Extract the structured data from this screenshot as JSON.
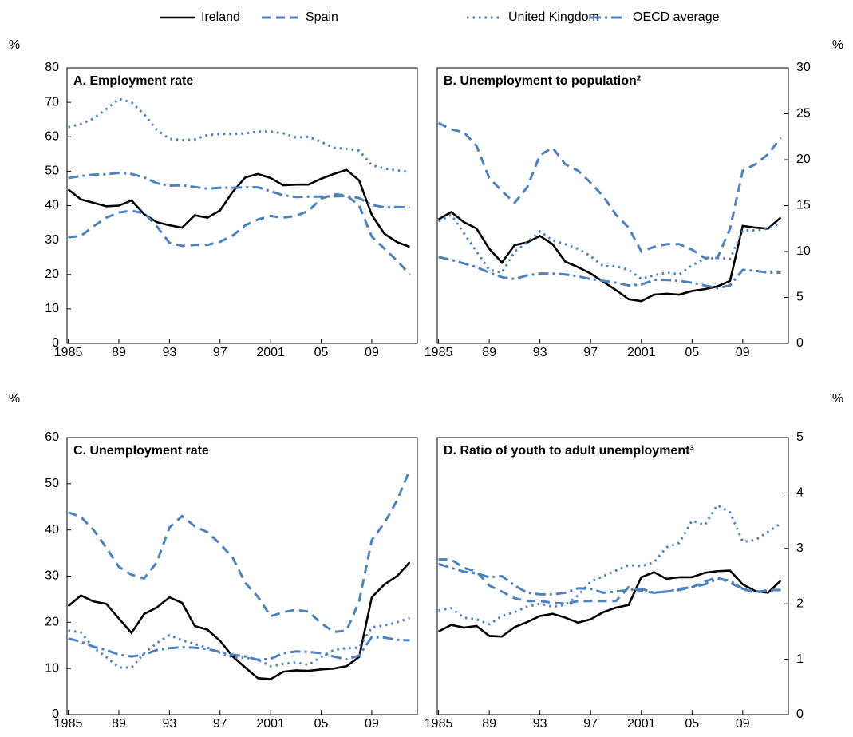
{
  "x": [
    1985,
    1986,
    1987,
    1988,
    1989,
    1990,
    1991,
    1992,
    1993,
    1994,
    1995,
    1996,
    1997,
    1998,
    1999,
    2000,
    2001,
    2002,
    2003,
    2004,
    2005,
    2006,
    2007,
    2008,
    2009,
    2010,
    2011,
    2012
  ],
  "xlim": [
    1984.9,
    2012.6
  ],
  "xticks": [
    1985,
    {
      "value": 1989,
      "label": "89"
    },
    {
      "value": 1993,
      "label": "93"
    },
    {
      "value": 1997,
      "label": "97"
    },
    2001,
    {
      "value": 2005,
      "label": "05"
    },
    {
      "value": 2009,
      "label": "09"
    }
  ],
  "legend": [
    {
      "name": "Ireland",
      "color": "#000000",
      "dash": "solid"
    },
    {
      "name": "Spain",
      "color": "#4f81bd",
      "dash": "dashed"
    },
    {
      "name": "United Kingdom",
      "color": "#4f81bd",
      "dash": "dotted"
    },
    {
      "name": "OECD average",
      "color": "#4f81bd",
      "dash": "dashdot"
    }
  ],
  "chart_data": [
    {
      "type": "line",
      "title": "A. Employment rate",
      "y_unit": "%",
      "axis_side": "left",
      "ylim": [
        0,
        80
      ],
      "yticks": [
        0,
        10,
        20,
        30,
        40,
        50,
        60,
        70,
        80
      ],
      "series": [
        {
          "values": [
            44.7,
            41.8,
            40.8,
            39.8,
            40,
            41.5,
            37.5,
            35.2,
            34.3,
            33.6,
            37.2,
            36.5,
            38.6,
            44,
            48.2,
            49.2,
            48,
            45.9,
            46.1,
            46.1,
            47.8,
            49.2,
            50.4,
            47.3,
            37.3,
            31.8,
            29.4,
            28
          ]
        },
        {
          "values": [
            30.8,
            31.2,
            34,
            36.5,
            38,
            38.5,
            37.8,
            34,
            29.2,
            28.3,
            28.6,
            28.6,
            29.5,
            31.3,
            34.3,
            36,
            37,
            36.5,
            37,
            38.5,
            42,
            43.3,
            43,
            40,
            31,
            27.5,
            24,
            20
          ]
        },
        {
          "values": [
            62.8,
            63.7,
            65.3,
            68,
            71,
            70,
            66.5,
            62,
            59.4,
            59,
            59.2,
            60.5,
            60.8,
            60.8,
            61,
            61.5,
            61.5,
            61,
            59.8,
            60,
            58.5,
            56.8,
            56.5,
            56,
            51.7,
            50.8,
            50.2,
            49.8
          ]
        },
        {
          "values": [
            48,
            48.6,
            49,
            49.1,
            49.5,
            49.2,
            48.2,
            46.5,
            45.8,
            45.9,
            45.4,
            44.9,
            45.2,
            45.2,
            45.3,
            45.3,
            44.2,
            43,
            42.5,
            42.6,
            42.6,
            42.7,
            42.8,
            42.2,
            40.2,
            39.5,
            39.6,
            39.5
          ]
        }
      ]
    },
    {
      "type": "line",
      "title": "B. Unemployment to population²",
      "y_unit": "%",
      "axis_side": "right",
      "ylim": [
        0,
        30
      ],
      "yticks": [
        0,
        5,
        10,
        15,
        20,
        25,
        30
      ],
      "series": [
        {
          "values": [
            13.5,
            14.3,
            13.2,
            12.5,
            10.3,
            8.8,
            10.7,
            11,
            11.7,
            10.8,
            8.9,
            8.3,
            7.6,
            6.7,
            5.8,
            4.8,
            4.6,
            5.3,
            5.4,
            5.3,
            5.7,
            5.9,
            6.2,
            6.8,
            12.8,
            12.6,
            12.5,
            13.7
          ]
        },
        {
          "values": [
            24,
            23.3,
            23,
            21.5,
            18,
            16.6,
            15.3,
            17,
            20.5,
            21.3,
            19.5,
            18.8,
            17.5,
            16,
            14,
            12.6,
            10,
            10.5,
            10.8,
            10.8,
            10.2,
            9.3,
            9.3,
            12.5,
            18.8,
            19.5,
            20.6,
            22.4
          ]
        },
        {
          "values": [
            13.3,
            14,
            12,
            10,
            8,
            7.7,
            10,
            11,
            12.2,
            11.2,
            10.8,
            10.3,
            9.5,
            8.4,
            8.4,
            8,
            7,
            7.4,
            7.7,
            7.5,
            8.5,
            9.2,
            9.3,
            9.2,
            12.3,
            12.3,
            12.5,
            13.1
          ]
        },
        {
          "values": [
            9.4,
            9.1,
            8.7,
            8.3,
            7.7,
            7.2,
            7,
            7.4,
            7.6,
            7.6,
            7.5,
            7.3,
            7,
            6.8,
            6.6,
            6.3,
            6.4,
            6.9,
            6.9,
            6.8,
            6.6,
            6.3,
            6,
            6.3,
            8,
            7.9,
            7.7,
            7.7
          ]
        }
      ]
    },
    {
      "type": "line",
      "title": "C. Unemployment rate",
      "y_unit": "%",
      "axis_side": "left",
      "ylim": [
        0,
        60
      ],
      "yticks": [
        0,
        10,
        20,
        30,
        40,
        50,
        60
      ],
      "series": [
        {
          "values": [
            23.5,
            25.8,
            24.5,
            24,
            20.8,
            17.7,
            21.8,
            23.2,
            25.4,
            24.2,
            19.2,
            18.4,
            16,
            12.6,
            10.2,
            7.9,
            7.7,
            9.3,
            9.6,
            9.5,
            9.8,
            10,
            10.5,
            12.5,
            25.4,
            28.2,
            30,
            33
          ]
        },
        {
          "values": [
            43.8,
            42.8,
            40,
            36.2,
            32,
            30.3,
            29.5,
            33,
            40.5,
            43,
            40.8,
            39.5,
            37,
            34,
            28.5,
            25.5,
            21.3,
            22.2,
            22.7,
            22.3,
            19.8,
            17.9,
            18.2,
            24.5,
            37.8,
            41.5,
            46.4,
            53
          ]
        },
        {
          "values": [
            18.2,
            17.8,
            14.5,
            12.5,
            10.2,
            10.2,
            13.3,
            15.5,
            17.2,
            16.1,
            15.3,
            14.5,
            13.4,
            12.4,
            12.3,
            11.9,
            10.5,
            11,
            11.3,
            10.8,
            12.5,
            14,
            14.4,
            14.5,
            18.9,
            19.3,
            20,
            20.9
          ]
        },
        {
          "values": [
            16.5,
            15.8,
            14.7,
            14,
            13,
            12.6,
            13,
            14,
            14.4,
            14.6,
            14.5,
            14.2,
            13.6,
            13,
            12.6,
            11.9,
            12.1,
            13.3,
            13.7,
            13.6,
            13.3,
            12.6,
            12,
            12.8,
            16.8,
            16.7,
            16.2,
            16.1
          ]
        }
      ]
    },
    {
      "type": "line",
      "title": "D. Ratio of youth to adult unemployment³",
      "y_unit": "%",
      "axis_side": "right",
      "ylim": [
        0,
        5
      ],
      "yticks": [
        0,
        1,
        2,
        3,
        4,
        5
      ],
      "series": [
        {
          "values": [
            1.5,
            1.62,
            1.57,
            1.6,
            1.42,
            1.41,
            1.58,
            1.67,
            1.78,
            1.82,
            1.75,
            1.66,
            1.72,
            1.85,
            1.93,
            1.98,
            2.48,
            2.57,
            2.45,
            2.48,
            2.48,
            2.56,
            2.59,
            2.6,
            2.35,
            2.23,
            2.2,
            2.42
          ]
        },
        {
          "values": [
            2.8,
            2.8,
            2.65,
            2.58,
            2.33,
            2.22,
            2.1,
            2.05,
            2.05,
            2.02,
            2,
            2.05,
            2.05,
            2.05,
            2.05,
            2.3,
            2.23,
            2.2,
            2.22,
            2.25,
            2.3,
            2.4,
            2.48,
            2.38,
            2.27,
            2.2,
            2.25,
            2.25
          ]
        },
        {
          "values": [
            1.88,
            1.92,
            1.75,
            1.72,
            1.63,
            1.78,
            1.85,
            1.95,
            2,
            1.95,
            1.98,
            2.15,
            2.4,
            2.5,
            2.6,
            2.7,
            2.68,
            2.75,
            3.02,
            3.1,
            3.5,
            3.42,
            3.78,
            3.65,
            3.12,
            3.15,
            3.3,
            3.45
          ]
        },
        {
          "values": [
            2.72,
            2.65,
            2.58,
            2.55,
            2.48,
            2.5,
            2.33,
            2.2,
            2.17,
            2.17,
            2.2,
            2.28,
            2.27,
            2.2,
            2.22,
            2.25,
            2.27,
            2.2,
            2.22,
            2.27,
            2.3,
            2.35,
            2.45,
            2.42,
            2.27,
            2.22,
            2.23,
            2.25
          ]
        }
      ]
    }
  ]
}
